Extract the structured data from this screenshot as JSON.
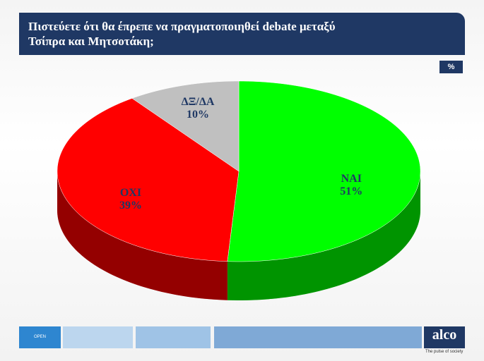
{
  "chart_data": {
    "type": "pie",
    "title": "Πιστεύετε ότι θα έπρεπε να πραγματοποιηθεί debate μεταξύ Τσίπρα και Μητσοτάκη;",
    "unit_label": "%",
    "categories": [
      "ΝΑΙ",
      "ΟΧΙ",
      "ΔΞ/ΔΑ"
    ],
    "values": [
      51,
      39,
      10
    ],
    "value_labels": [
      "51%",
      "39%",
      "10%"
    ],
    "colors": [
      "#00ff00",
      "#ff0000",
      "#c0c0c0"
    ]
  },
  "footer": {
    "channel": "OPEN",
    "brand": "alco",
    "tagline": "The pulse of society"
  }
}
